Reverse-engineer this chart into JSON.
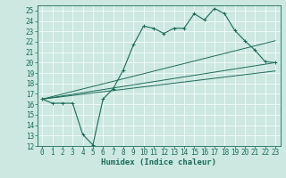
{
  "title": "",
  "xlabel": "Humidex (Indice chaleur)",
  "bg_color": "#cce8e0",
  "line_color": "#1a6b5a",
  "grid_color": "#ffffff",
  "main_curve": [
    16.5,
    16.1,
    16.1,
    16.1,
    13.1,
    12.1,
    16.5,
    17.5,
    19.3,
    21.7,
    23.5,
    23.3,
    22.8,
    23.3,
    23.3,
    24.7,
    24.1,
    25.2,
    24.7,
    23.1,
    22.1,
    21.2,
    20.1,
    20.0
  ],
  "line1_end_y": 20.0,
  "line2_end_y": 22.1,
  "line3_end_y": 19.2,
  "line_start_y": 16.5,
  "line_start_x": 0,
  "line_end_x": 23,
  "ylim": [
    12,
    25.5
  ],
  "xlim": [
    -0.5,
    23.5
  ],
  "yticks": [
    12,
    13,
    14,
    15,
    16,
    17,
    18,
    19,
    20,
    21,
    22,
    23,
    24,
    25
  ],
  "xticks": [
    0,
    1,
    2,
    3,
    4,
    5,
    6,
    7,
    8,
    9,
    10,
    11,
    12,
    13,
    14,
    15,
    16,
    17,
    18,
    19,
    20,
    21,
    22,
    23
  ],
  "tick_fontsize": 5.5,
  "label_fontsize": 6.5
}
